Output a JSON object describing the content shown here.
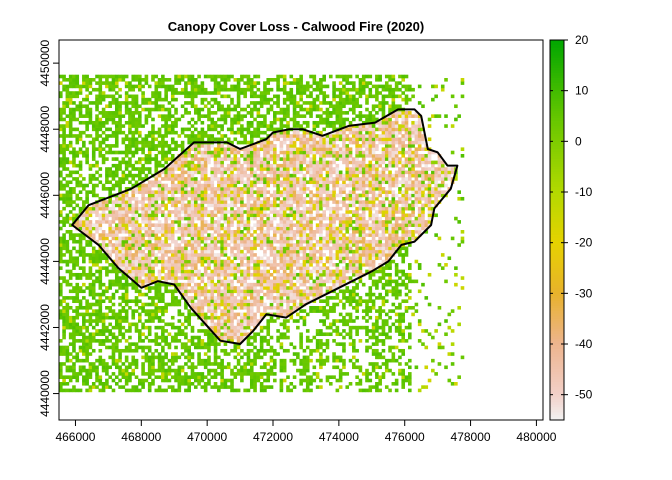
{
  "chart_data": {
    "type": "heatmap",
    "title": "Canopy Cover Loss - Calwood Fire (2020)",
    "xlabel": "",
    "ylabel": "",
    "x_ticks": [
      466000,
      468000,
      470000,
      472000,
      474000,
      476000,
      478000,
      480000
    ],
    "y_ticks": [
      4440000,
      4442000,
      4444000,
      4446000,
      4448000,
      4450000
    ],
    "xlim": [
      465500,
      480200
    ],
    "ylim": [
      4439200,
      4450700
    ],
    "legend": {
      "placement": "right",
      "range": [
        -55,
        20
      ],
      "ticks": [
        20,
        10,
        0,
        -10,
        -20,
        -30,
        -40,
        -50
      ],
      "color_stops": [
        {
          "value": 20,
          "color": "#00a600"
        },
        {
          "value": 5,
          "color": "#63c600"
        },
        {
          "value": -10,
          "color": "#b3d900"
        },
        {
          "value": -20,
          "color": "#e6d200"
        },
        {
          "value": -30,
          "color": "#e8b22c"
        },
        {
          "value": -40,
          "color": "#edb48e"
        },
        {
          "value": -50,
          "color": "#f2d0c8"
        },
        {
          "value": -55,
          "color": "#f2f2f2"
        }
      ]
    },
    "fire_perimeter": [
      [
        465900,
        4445100
      ],
      [
        466400,
        4445700
      ],
      [
        467700,
        4446200
      ],
      [
        468700,
        4446800
      ],
      [
        469600,
        4447600
      ],
      [
        470200,
        4447600
      ],
      [
        470600,
        4447600
      ],
      [
        471000,
        4447400
      ],
      [
        471800,
        4447700
      ],
      [
        472000,
        4447900
      ],
      [
        472500,
        4448000
      ],
      [
        472900,
        4448000
      ],
      [
        473500,
        4447800
      ],
      [
        474300,
        4448100
      ],
      [
        475100,
        4448200
      ],
      [
        475800,
        4448600
      ],
      [
        476300,
        4448600
      ],
      [
        476500,
        4448400
      ],
      [
        476700,
        4447400
      ],
      [
        477000,
        4447300
      ],
      [
        477300,
        4446900
      ],
      [
        477600,
        4446900
      ],
      [
        477400,
        4446200
      ],
      [
        476900,
        4445600
      ],
      [
        476800,
        4445100
      ],
      [
        476300,
        4444600
      ],
      [
        475900,
        4444500
      ],
      [
        475500,
        4444000
      ],
      [
        475000,
        4443700
      ],
      [
        474000,
        4443200
      ],
      [
        473000,
        4442700
      ],
      [
        472400,
        4442300
      ],
      [
        471800,
        4442400
      ],
      [
        471400,
        4441900
      ],
      [
        471000,
        4441500
      ],
      [
        470400,
        4441600
      ],
      [
        469500,
        4442600
      ],
      [
        469000,
        4443300
      ],
      [
        468500,
        4443400
      ],
      [
        468000,
        4443200
      ],
      [
        467300,
        4443800
      ],
      [
        466700,
        4444500
      ],
      [
        465900,
        4445100
      ]
    ],
    "raster_extent": {
      "xmin": 465500,
      "xmax": 477800,
      "ymin": 4440050,
      "ymax": 4449650
    }
  }
}
